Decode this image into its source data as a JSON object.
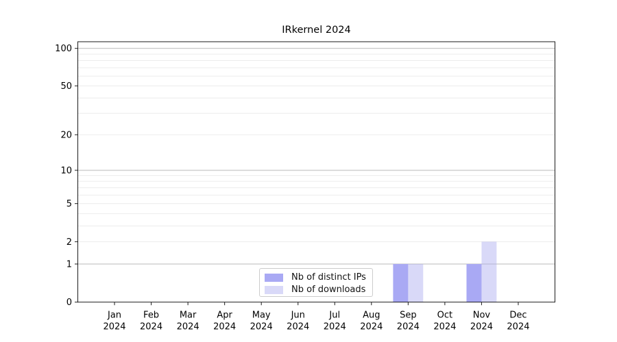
{
  "chart_data": {
    "type": "bar",
    "title": "IRkernel 2024",
    "categories": [
      "Jan",
      "Feb",
      "Mar",
      "Apr",
      "May",
      "Jun",
      "Jul",
      "Aug",
      "Sep",
      "Oct",
      "Nov",
      "Dec"
    ],
    "year": "2024",
    "series": [
      {
        "name": "Nb of distinct IPs",
        "color": "#a9a9f4",
        "values": [
          0,
          0,
          0,
          0,
          0,
          0,
          0,
          0,
          1,
          0,
          1,
          0
        ]
      },
      {
        "name": "Nb of downloads",
        "color": "rgba(170,170,240,0.45)",
        "values": [
          0,
          0,
          0,
          0,
          0,
          0,
          0,
          0,
          1,
          0,
          2,
          0
        ]
      }
    ],
    "xlabel": "",
    "ylabel": "",
    "yscale": "log1p",
    "ylim": [
      0,
      113
    ],
    "yticks": [
      0,
      1,
      2,
      5,
      10,
      20,
      50,
      100
    ],
    "grid": {
      "major_values": [
        1,
        10,
        100
      ],
      "minor_values": [
        2,
        3,
        4,
        5,
        6,
        7,
        8,
        9,
        20,
        30,
        40,
        50,
        60,
        70,
        80,
        90
      ],
      "major_color": "#b9b9b9",
      "minor_color": "#ececec"
    },
    "legend_position": "lower center",
    "axis_color": "#1a1a1a",
    "text_color": "#000000",
    "background_color": "#ffffff"
  }
}
